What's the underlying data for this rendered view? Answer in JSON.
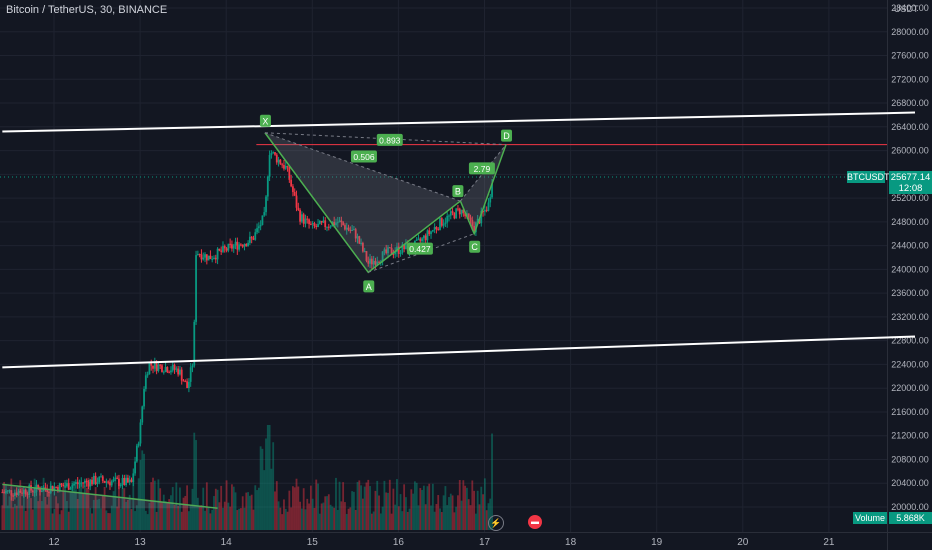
{
  "header": {
    "symbol_title": "Bitcoin / TetherUS, 30, BINANCE",
    "currency": "USDT"
  },
  "price_axis": {
    "ticks": [
      "28400.00",
      "28000.00",
      "27600.00",
      "27200.00",
      "26800.00",
      "26400.00",
      "26000.00",
      "25600.00",
      "25200.00",
      "24800.00",
      "24400.00",
      "24000.00",
      "23600.00",
      "23200.00",
      "22800.00",
      "22400.00",
      "22000.00",
      "21600.00",
      "21200.00",
      "20800.00",
      "20400.00",
      "20000.00"
    ]
  },
  "time_axis": {
    "ticks": [
      "12",
      "13",
      "14",
      "15",
      "16",
      "17",
      "18",
      "19",
      "20",
      "21"
    ]
  },
  "last_price": {
    "symbol_label": "BTCUSDT",
    "price": "25677.14",
    "countdown": "12:08",
    "color": "#089981"
  },
  "volume": {
    "label": "Volume",
    "value": "5.868K"
  },
  "pattern": {
    "points": [
      {
        "label": "X",
        "day": 14.45,
        "price": 26300
      },
      {
        "label": "A",
        "day": 15.65,
        "price": 23950
      },
      {
        "label": "B",
        "day": 16.72,
        "price": 25150
      },
      {
        "label": "C",
        "day": 16.88,
        "price": 24600
      },
      {
        "label": "D",
        "day": 17.25,
        "price": 26100
      }
    ],
    "ratios": [
      {
        "text": "0.506"
      },
      {
        "text": "0.893"
      },
      {
        "text": "2.79"
      },
      {
        "text": "0.427"
      }
    ],
    "line_color": "#4caf50"
  },
  "chart_data": {
    "type": "candlestick",
    "title": "Bitcoin / TetherUS, 30, BINANCE",
    "ylim": [
      19900,
      28600
    ],
    "xlim": [
      11.4,
      22.0
    ],
    "close_series_approx": [
      {
        "x": 11.5,
        "y": 20250
      },
      {
        "x": 11.8,
        "y": 20300
      },
      {
        "x": 12.1,
        "y": 20350
      },
      {
        "x": 12.5,
        "y": 20450
      },
      {
        "x": 12.9,
        "y": 20400
      },
      {
        "x": 13.0,
        "y": 21300
      },
      {
        "x": 13.05,
        "y": 22100
      },
      {
        "x": 13.1,
        "y": 22400
      },
      {
        "x": 13.3,
        "y": 22350
      },
      {
        "x": 13.45,
        "y": 22300
      },
      {
        "x": 13.55,
        "y": 22000
      },
      {
        "x": 13.62,
        "y": 22500
      },
      {
        "x": 13.65,
        "y": 24300
      },
      {
        "x": 13.8,
        "y": 24200
      },
      {
        "x": 14.1,
        "y": 24400
      },
      {
        "x": 14.3,
        "y": 24500
      },
      {
        "x": 14.45,
        "y": 24900
      },
      {
        "x": 14.5,
        "y": 26000
      },
      {
        "x": 14.7,
        "y": 25700
      },
      {
        "x": 14.85,
        "y": 24900
      },
      {
        "x": 15.0,
        "y": 24700
      },
      {
        "x": 15.3,
        "y": 24800
      },
      {
        "x": 15.5,
        "y": 24600
      },
      {
        "x": 15.65,
        "y": 24100
      },
      {
        "x": 15.9,
        "y": 24300
      },
      {
        "x": 16.2,
        "y": 24400
      },
      {
        "x": 16.5,
        "y": 24800
      },
      {
        "x": 16.72,
        "y": 25000
      },
      {
        "x": 16.88,
        "y": 24700
      },
      {
        "x": 17.05,
        "y": 25100
      },
      {
        "x": 17.1,
        "y": 25677
      }
    ],
    "trendlines": [
      {
        "name": "upper channel",
        "from": {
          "x": 11.4,
          "y": 26320
        },
        "to": {
          "x": 22.0,
          "y": 26640
        }
      },
      {
        "name": "lower channel",
        "from": {
          "x": 11.4,
          "y": 22350
        },
        "to": {
          "x": 22.0,
          "y": 22870
        }
      },
      {
        "name": "lower-left support",
        "from": {
          "x": 11.4,
          "y": 20380
        },
        "to": {
          "x": 13.9,
          "y": 19980
        }
      }
    ],
    "horizontal_lines": [
      {
        "name": "resistance",
        "y": 26100,
        "color": "#f23645"
      }
    ],
    "volume_max_approx": 2000
  }
}
